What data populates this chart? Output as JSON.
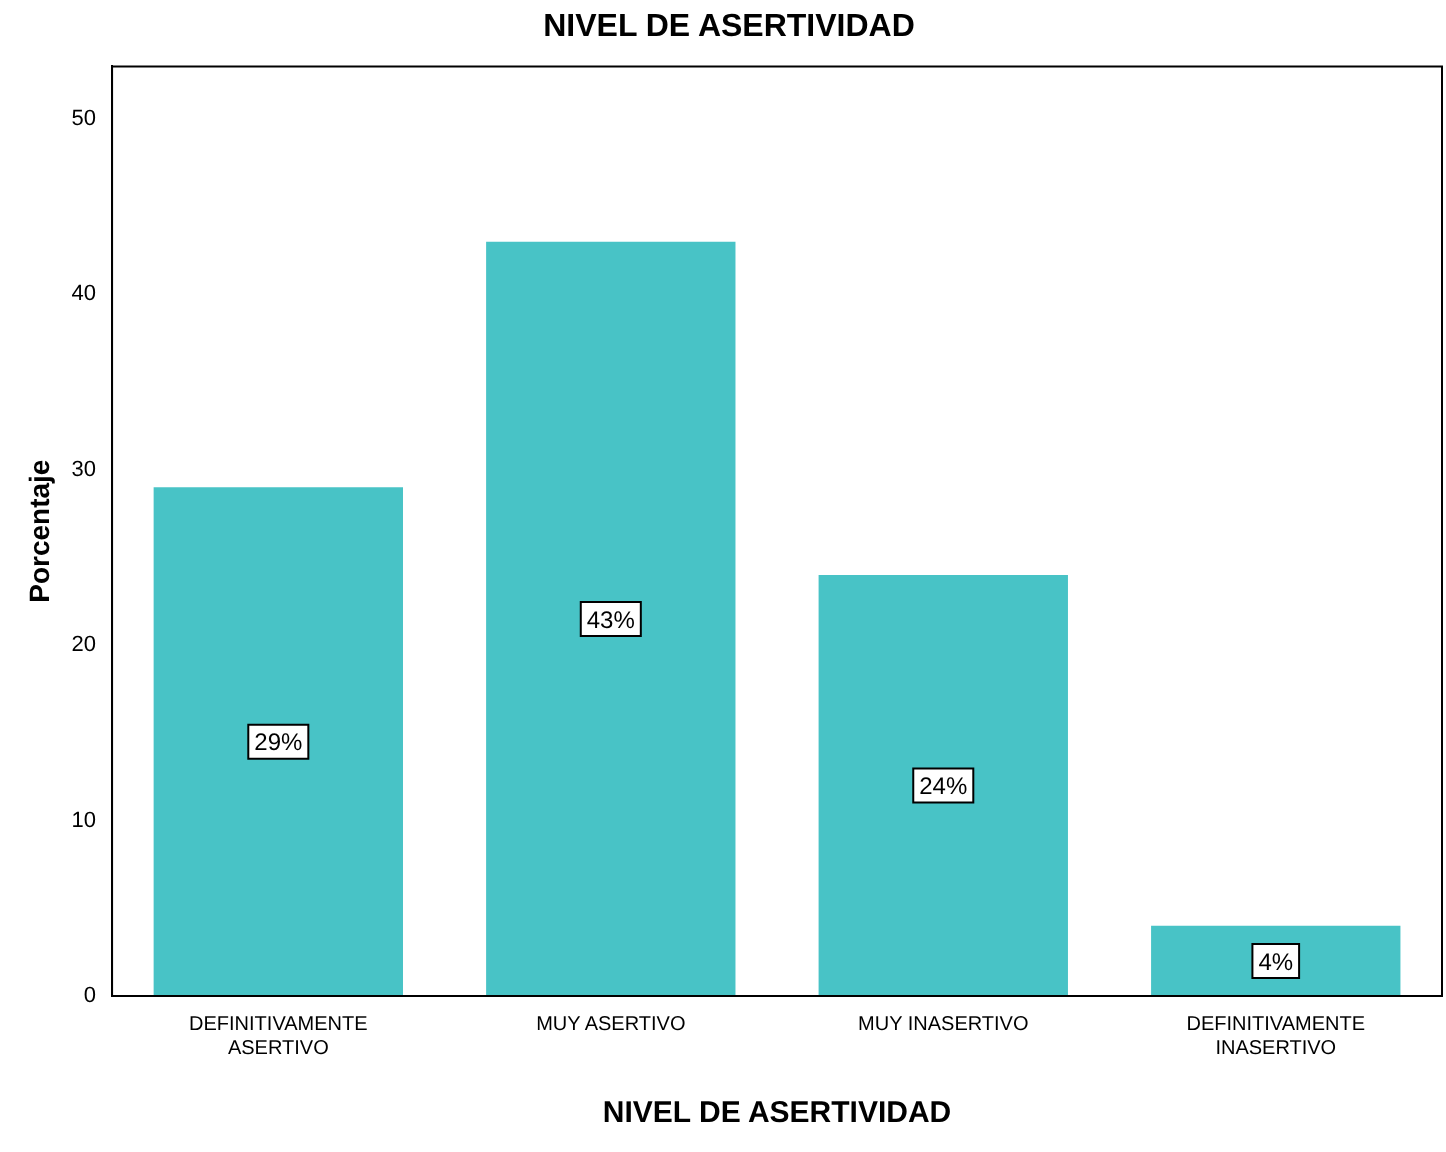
{
  "chart_data": {
    "type": "bar",
    "title": "NIVEL DE ASERTIVIDAD",
    "xlabel": "NIVEL DE ASERTIVIDAD",
    "ylabel": "Porcentaje",
    "categories": [
      "DEFINITIVAMENTE ASERTIVO",
      "MUY ASERTIVO",
      "MUY INASERTIVO",
      "DEFINITIVAMENTE INASERTIVO"
    ],
    "values": [
      29,
      43,
      24,
      4
    ],
    "value_labels": [
      "29%",
      "43%",
      "24%",
      "4%"
    ],
    "color": "#48c3c6",
    "ylim": [
      0,
      53
    ],
    "yticks": [
      0,
      10,
      20,
      30,
      40,
      50
    ],
    "grid": false,
    "legend": false
  }
}
